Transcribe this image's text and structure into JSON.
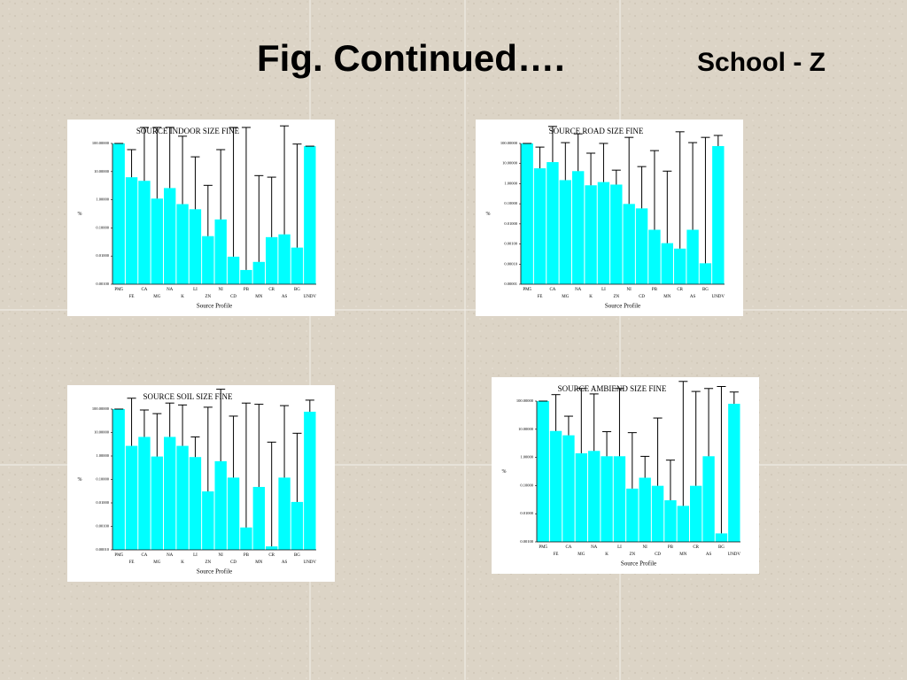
{
  "slide": {
    "title": "Fig. Continued….",
    "subtitle": "School - Z"
  },
  "chart_data": [
    {
      "type": "bar",
      "title": "SOURCE INDOOR SIZE FINE",
      "xlabel": "Source Profile",
      "ylabel": "%",
      "categories": [
        "PM5",
        "FE",
        "CA",
        "MG",
        "NA",
        "K",
        "LI",
        "ZN",
        "NI",
        "CD",
        "PB",
        "MN",
        "CR",
        "AS",
        "BG",
        "UNDV"
      ],
      "values": [
        100,
        6.3,
        4.7,
        1.1,
        2.6,
        0.7,
        0.46,
        0.051,
        0.2,
        0.0095,
        0.0032,
        0.0062,
        0.047,
        0.059,
        0.02,
        80
      ],
      "errors": [
        0,
        54,
        365,
        370,
        370,
        180,
        33,
        3.2,
        60,
        370,
        370,
        7.2,
        6.3,
        420,
        95,
        0
      ],
      "color": "#00ffff",
      "error_color": "#000000",
      "log_scale": true,
      "ylim": [
        0.001,
        100
      ],
      "yticks": [
        {
          "value": 100,
          "label": "100.00000"
        },
        {
          "value": 10,
          "label": "10.00000"
        },
        {
          "value": 1,
          "label": "1.00000"
        },
        {
          "value": 0.1,
          "label": "0.10000"
        },
        {
          "value": 0.01,
          "label": "0.01000"
        },
        {
          "value": 0.001,
          "label": "0.00100"
        }
      ]
    },
    {
      "type": "bar",
      "title": "SOURCE ROAD SIZE FINE",
      "xlabel": "Source Profile",
      "ylabel": "%",
      "categories": [
        "PM5",
        "FE",
        "CA",
        "MG",
        "NA",
        "K",
        "LI",
        "ZN",
        "NI",
        "CD",
        "PB",
        "MN",
        "CR",
        "AS",
        "BG",
        "UNDV"
      ],
      "values": [
        100,
        5.8,
        11.8,
        1.5,
        4.2,
        0.83,
        1.2,
        0.9,
        0.098,
        0.059,
        0.0051,
        0.0011,
        0.00059,
        0.0051,
        0.00011,
        74
      ],
      "errors": [
        0,
        60,
        690,
        108,
        296,
        32,
        99,
        3.8,
        200,
        7,
        44,
        4.2,
        380,
        110,
        200,
        176
      ],
      "color": "#00ffff",
      "error_color": "#000000",
      "log_scale": true,
      "ylim": [
        1e-05,
        100
      ],
      "yticks": [
        {
          "value": 100,
          "label": "100.00000"
        },
        {
          "value": 10,
          "label": "10.00000"
        },
        {
          "value": 1,
          "label": "1.00000"
        },
        {
          "value": 0.1,
          "label": "0.10000"
        },
        {
          "value": 0.01,
          "label": "0.01000"
        },
        {
          "value": 0.001,
          "label": "0.00100"
        },
        {
          "value": 0.0001,
          "label": "0.00010"
        },
        {
          "value": 1e-05,
          "label": "0.00001"
        }
      ]
    },
    {
      "type": "bar",
      "title": "SOURCE SOIL SIZE FINE",
      "xlabel": "Source Profile",
      "ylabel": "%",
      "categories": [
        "PM5",
        "FE",
        "CA",
        "MG",
        "NA",
        "K",
        "LI",
        "ZN",
        "NI",
        "CD",
        "PB",
        "MN",
        "CR",
        "AS",
        "BG",
        "UNDV"
      ],
      "values": [
        100,
        2.7,
        6.5,
        0.95,
        6.5,
        2.7,
        0.9,
        0.031,
        0.6,
        0.12,
        0.0009,
        0.048,
        0.00014,
        0.12,
        0.011,
        77
      ],
      "errors": [
        0,
        287,
        85,
        63,
        174,
        147,
        5.6,
        120,
        700,
        50,
        180,
        160,
        3.9,
        140,
        9.3,
        163
      ],
      "color": "#00ffff",
      "error_color": "#000000",
      "log_scale": true,
      "ylim": [
        0.0001,
        100
      ],
      "yticks": [
        {
          "value": 100,
          "label": "100.00000"
        },
        {
          "value": 10,
          "label": "10.00000"
        },
        {
          "value": 1,
          "label": "1.00000"
        },
        {
          "value": 0.1,
          "label": "0.10000"
        },
        {
          "value": 0.01,
          "label": "0.01000"
        },
        {
          "value": 0.001,
          "label": "0.00100"
        },
        {
          "value": 0.0001,
          "label": "0.00010"
        }
      ]
    },
    {
      "type": "bar",
      "title": "SOURCE AMBIEND SIZE FINE",
      "xlabel": "Source Profile",
      "ylabel": "%",
      "categories": [
        "PM5",
        "FE",
        "CA",
        "MG",
        "NA",
        "K",
        "LI",
        "ZN",
        "NI",
        "CD",
        "PB",
        "MN",
        "CR",
        "AS",
        "BG",
        "UNDV"
      ],
      "values": [
        100,
        8.7,
        6.1,
        1.4,
        1.7,
        1.1,
        1.1,
        0.078,
        0.19,
        0.098,
        0.03,
        0.019,
        0.098,
        1.1,
        0.002,
        80
      ],
      "errors": [
        0,
        161,
        23,
        279,
        178,
        7.1,
        279,
        7.5,
        0.9,
        25,
        0.77,
        500,
        220,
        279,
        330,
        130
      ],
      "color": "#00ffff",
      "error_color": "#000000",
      "log_scale": true,
      "ylim": [
        0.001,
        100
      ],
      "yticks": [
        {
          "value": 100,
          "label": "100.00000"
        },
        {
          "value": 10,
          "label": "10.00000"
        },
        {
          "value": 1,
          "label": "1.00000"
        },
        {
          "value": 0.1,
          "label": "0.10000"
        },
        {
          "value": 0.01,
          "label": "0.01000"
        },
        {
          "value": 0.001,
          "label": "0.00100"
        }
      ]
    }
  ]
}
